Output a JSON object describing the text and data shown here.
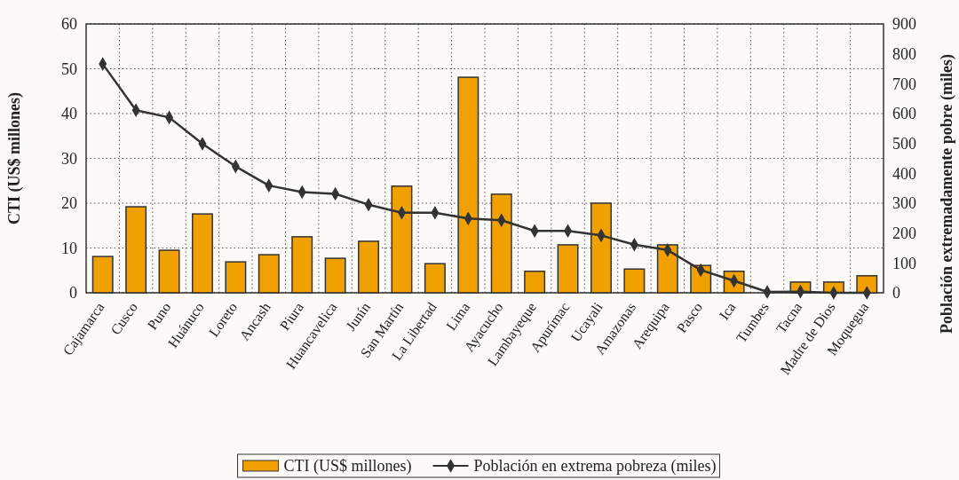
{
  "chart_data": {
    "type": "bar",
    "ylabel": "CTI (US$ millones)",
    "y2label": "Población extremadamente pobre (miles)",
    "categories": [
      "Cajamarca",
      "Cusco",
      "Puno",
      "Huánuco",
      "Loreto",
      "Ancash",
      "Piura",
      "Huancavelica",
      "Junín",
      "San Martín",
      "La Libertad",
      "Lima",
      "Ayacucho",
      "Lambayeque",
      "Apurímac",
      "Ucayali",
      "Amazonas",
      "Arequipa",
      "Pasco",
      "Ica",
      "Tumbes",
      "Tacna",
      "Madre de Dios",
      "Moquegua"
    ],
    "series": [
      {
        "name": "CTI (US$ millones)",
        "color": "#f0a000",
        "values": [
          8.1,
          19.2,
          9.5,
          17.6,
          6.9,
          8.5,
          12.5,
          7.7,
          11.5,
          23.8,
          6.5,
          48.1,
          22.0,
          4.8,
          10.7,
          20.0,
          5.3,
          10.7,
          6.1,
          4.8,
          null,
          2.4,
          2.4,
          3.8
        ]
      },
      {
        "name": "Población en extrema pobreza (miles)",
        "type": "line",
        "axis": "y2",
        "color": "#333333",
        "marker": "diamond",
        "values": [
          766,
          611,
          587,
          499,
          423,
          359,
          337,
          331,
          295,
          268,
          268,
          249,
          243,
          207,
          207,
          192,
          161,
          143,
          76,
          40,
          3,
          4,
          0,
          0
        ]
      }
    ],
    "ylim": [
      0,
      60
    ],
    "yticks": [
      0,
      10,
      20,
      30,
      40,
      50,
      60
    ],
    "y2lim": [
      0,
      900
    ],
    "y2ticks": [
      0,
      100,
      200,
      300,
      400,
      500,
      600,
      700,
      800,
      900
    ],
    "grid": true,
    "legend": "bottom"
  }
}
